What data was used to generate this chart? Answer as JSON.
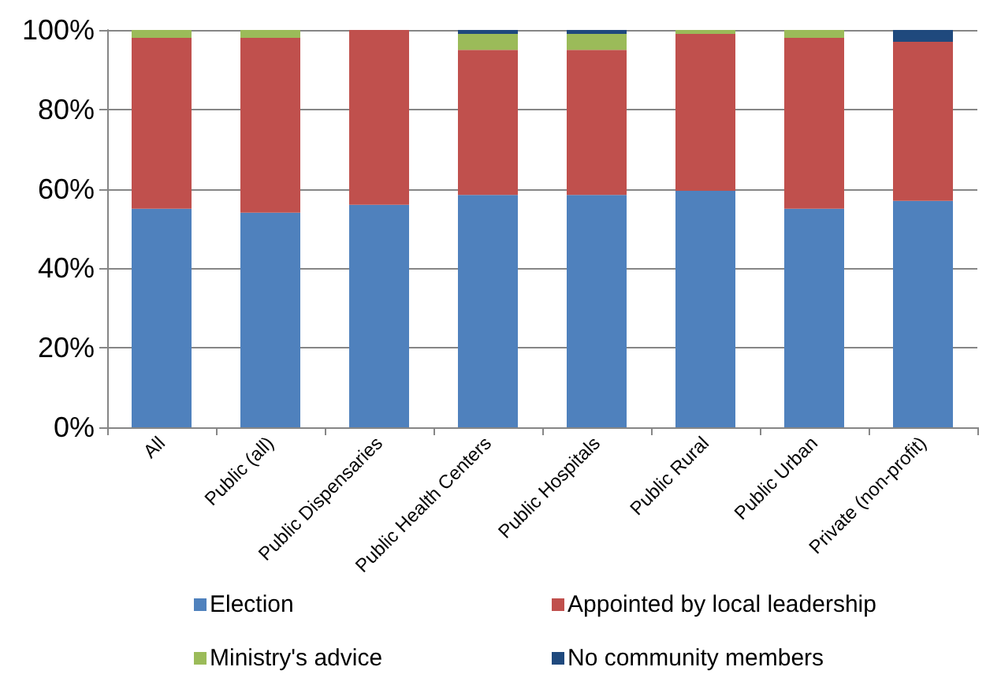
{
  "chart_data": {
    "type": "bar",
    "stacked": true,
    "categories": [
      "All",
      "Public (all)",
      "Public Dispensaries",
      "Public Health Centers",
      "Public Hospitals",
      "Public Rural",
      "Public Urban",
      "Private (non-profit)"
    ],
    "series": [
      {
        "name": "Election",
        "color": "#4f81bd",
        "values": [
          55,
          54,
          56,
          58.5,
          58.5,
          59.5,
          55,
          57
        ]
      },
      {
        "name": "Appointed by local leadership",
        "color": "#c0504d",
        "values": [
          43,
          44,
          44,
          36.5,
          36.5,
          39.5,
          43,
          40
        ]
      },
      {
        "name": "Ministry's advice",
        "color": "#9bbb59",
        "values": [
          2,
          2,
          0,
          4,
          4,
          1,
          2,
          0
        ]
      },
      {
        "name": "No community members",
        "color": "#1f497d",
        "values": [
          0,
          0,
          0,
          1,
          1,
          0,
          0,
          3
        ]
      }
    ],
    "ylim": [
      0,
      100
    ],
    "yticks": [
      {
        "value": 0,
        "label": "0%"
      },
      {
        "value": 20,
        "label": "20%"
      },
      {
        "value": 40,
        "label": "40%"
      },
      {
        "value": 60,
        "label": "60%"
      },
      {
        "value": 80,
        "label": "80%"
      },
      {
        "value": 100,
        "label": "100%"
      }
    ],
    "grid": "y",
    "legend": "bottom"
  }
}
